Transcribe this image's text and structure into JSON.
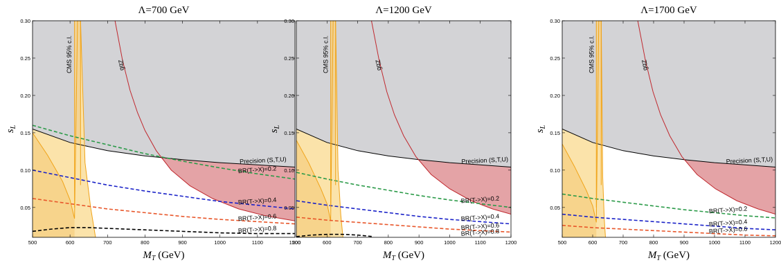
{
  "chart_data": [
    {
      "type": "line",
      "title": "Λ=700 GeV",
      "xlabel": "M_T (GeV)",
      "ylabel": "s_L",
      "xlim": [
        500,
        1200
      ],
      "ylim": [
        0.01,
        0.3
      ],
      "xticks": [
        "500",
        "600",
        "700",
        "800",
        "900",
        "1000",
        "1100",
        "1200"
      ],
      "yticks": [
        "0.05",
        "0.10",
        "0.15",
        "0.20",
        "0.25",
        "0.30"
      ],
      "regions": {
        "precision_excluded_color": "#d3d3d6",
        "zbb_excluded_color": "#e4a3a6",
        "cms_excluded_color": "#f7d48c",
        "cms_inner_color": "#fbe3aa"
      },
      "series": [
        {
          "name": "Precision (S,T,U)",
          "color": "#000000",
          "style": "solid",
          "x": [
            500,
            600,
            700,
            800,
            900,
            1000,
            1100,
            1200
          ],
          "y": [
            0.155,
            0.137,
            0.126,
            0.119,
            0.114,
            0.11,
            0.107,
            0.104
          ]
        },
        {
          "name": "Zbb̄",
          "color": "#c0282e",
          "style": "solid",
          "x": [
            720,
            740,
            760,
            780,
            800,
            830,
            870,
            920,
            980,
            1050,
            1120,
            1200
          ],
          "y": [
            0.3,
            0.247,
            0.207,
            0.177,
            0.153,
            0.126,
            0.1,
            0.079,
            0.062,
            0.048,
            0.039,
            0.032
          ]
        },
        {
          "name": "CMS 95% c.l.",
          "color": "#f0a318",
          "style": "solid",
          "x": [
            500,
            540,
            580,
            600,
            612,
            620,
            628,
            640,
            655,
            668
          ],
          "y": [
            0.15,
            0.12,
            0.085,
            0.06,
            0.035,
            0.3,
            0.3,
            0.11,
            0.05,
            0.01
          ]
        },
        {
          "name": "BR(T->X)=0.2",
          "color": "#2a9a48",
          "style": "dashed",
          "x": [
            500,
            600,
            700,
            800,
            900,
            1000,
            1100,
            1200
          ],
          "y": [
            0.16,
            0.146,
            0.134,
            0.122,
            0.112,
            0.103,
            0.095,
            0.088
          ]
        },
        {
          "name": "BR(T->X)=0.4",
          "color": "#1a22c8",
          "style": "dashed",
          "x": [
            500,
            600,
            700,
            800,
            900,
            1000,
            1100,
            1200
          ],
          "y": [
            0.1,
            0.09,
            0.08,
            0.072,
            0.065,
            0.058,
            0.053,
            0.048
          ]
        },
        {
          "name": "BR(T->X)=0.6",
          "color": "#e8562a",
          "style": "dashed",
          "x": [
            500,
            600,
            700,
            800,
            900,
            1000,
            1100,
            1200
          ],
          "y": [
            0.062,
            0.055,
            0.048,
            0.043,
            0.038,
            0.034,
            0.031,
            0.028
          ]
        },
        {
          "name": "BR(T->X)=0.8",
          "color": "#000000",
          "style": "dashed",
          "x": [
            500,
            550,
            600,
            650,
            700,
            800,
            900,
            1000,
            1100,
            1200
          ],
          "y": [
            0.018,
            0.021,
            0.023,
            0.023,
            0.022,
            0.02,
            0.018,
            0.016,
            0.015,
            0.015
          ]
        }
      ],
      "annotations": {
        "precision": "Precision (S,T,U)",
        "zbb": "Zbb̄",
        "cms": "CMS 95% c.l.",
        "br": [
          "BR(T->X)=0.2",
          "BR(T->X)=0.4",
          "BR(T->X)=0.6",
          "BR(T->X)=0.8"
        ]
      }
    },
    {
      "type": "line",
      "title": "Λ=1200 GeV",
      "xlabel": "M_T (GeV)",
      "ylabel": "s_L",
      "xlim": [
        500,
        1200
      ],
      "ylim": [
        0.01,
        0.3
      ],
      "xticks": [
        "500",
        "600",
        "700",
        "800",
        "900",
        "1000",
        "1100",
        "1200"
      ],
      "yticks": [
        "0.05",
        "0.10",
        "0.15",
        "0.20",
        "0.25",
        "0.30"
      ],
      "regions": {
        "precision_excluded_color": "#d3d3d6",
        "zbb_excluded_color": "#e4a3a6",
        "cms_excluded_color": "#f7d48c",
        "cms_inner_color": "#fbe3aa"
      },
      "series": [
        {
          "name": "Precision (S,T,U)",
          "color": "#000000",
          "style": "solid",
          "x": [
            500,
            600,
            700,
            800,
            900,
            1000,
            1100,
            1200
          ],
          "y": [
            0.155,
            0.137,
            0.126,
            0.119,
            0.114,
            0.11,
            0.107,
            0.104
          ]
        },
        {
          "name": "Zbb̄",
          "color": "#c0282e",
          "style": "solid",
          "x": [
            745,
            770,
            795,
            820,
            850,
            890,
            940,
            1000,
            1070,
            1140,
            1200
          ],
          "y": [
            0.3,
            0.247,
            0.205,
            0.174,
            0.146,
            0.118,
            0.094,
            0.075,
            0.059,
            0.048,
            0.041
          ]
        },
        {
          "name": "CMS 95% c.l.",
          "color": "#f0a318",
          "style": "solid",
          "x": [
            500,
            540,
            580,
            600,
            612,
            620,
            628,
            636,
            645,
            652
          ],
          "y": [
            0.14,
            0.11,
            0.075,
            0.055,
            0.032,
            0.3,
            0.3,
            0.1,
            0.04,
            0.01
          ]
        },
        {
          "name": "BR(T->X)=0.2",
          "color": "#2a9a48",
          "style": "dashed",
          "x": [
            500,
            600,
            700,
            800,
            900,
            1000,
            1100,
            1200
          ],
          "y": [
            0.097,
            0.088,
            0.08,
            0.073,
            0.066,
            0.06,
            0.055,
            0.05
          ]
        },
        {
          "name": "BR(T->X)=0.4",
          "color": "#1a22c8",
          "style": "dashed",
          "x": [
            500,
            600,
            700,
            800,
            900,
            1000,
            1100,
            1200
          ],
          "y": [
            0.059,
            0.053,
            0.048,
            0.043,
            0.038,
            0.034,
            0.031,
            0.028
          ]
        },
        {
          "name": "BR(T->X)=0.6",
          "color": "#e8562a",
          "style": "dashed",
          "x": [
            500,
            600,
            700,
            800,
            900,
            1000,
            1100,
            1200
          ],
          "y": [
            0.037,
            0.033,
            0.03,
            0.027,
            0.024,
            0.021,
            0.019,
            0.017
          ]
        },
        {
          "name": "BR(T->X)=0.8",
          "color": "#000000",
          "style": "dashed",
          "x": [
            500,
            550,
            600,
            650,
            700,
            750
          ],
          "y": [
            0.011,
            0.013,
            0.014,
            0.014,
            0.013,
            0.011
          ]
        }
      ],
      "annotations": {
        "precision": "Precision (S,T,U)",
        "zbb": "Zbb̄",
        "cms": "CMS 95% c.l.",
        "br": [
          "BR(T->X)=0.2",
          "BR(T->X)=0.4",
          "BR(T->X)=0.6",
          "BR(T->X)=0.8"
        ]
      }
    },
    {
      "type": "line",
      "title": "Λ=1700 GeV",
      "xlabel": "M_T (GeV)",
      "ylabel": "s_L",
      "xlim": [
        500,
        1200
      ],
      "ylim": [
        0.01,
        0.3
      ],
      "xticks": [
        "500",
        "600",
        "700",
        "800",
        "900",
        "1000",
        "1100",
        "1200"
      ],
      "yticks": [
        "0.05",
        "0.10",
        "0.15",
        "0.20",
        "0.25",
        "0.30"
      ],
      "regions": {
        "precision_excluded_color": "#d3d3d6",
        "zbb_excluded_color": "#e4a3a6",
        "cms_excluded_color": "#f7d48c",
        "cms_inner_color": "#fbe3aa"
      },
      "series": [
        {
          "name": "Precision (S,T,U)",
          "color": "#000000",
          "style": "solid",
          "x": [
            500,
            600,
            700,
            800,
            900,
            1000,
            1100,
            1200
          ],
          "y": [
            0.155,
            0.137,
            0.126,
            0.119,
            0.114,
            0.11,
            0.107,
            0.104
          ]
        },
        {
          "name": "Zbb̄",
          "color": "#c0282e",
          "style": "solid",
          "x": [
            748,
            773,
            798,
            823,
            853,
            893,
            943,
            1003,
            1073,
            1143,
            1200
          ],
          "y": [
            0.3,
            0.247,
            0.205,
            0.174,
            0.146,
            0.118,
            0.094,
            0.075,
            0.059,
            0.048,
            0.041
          ]
        },
        {
          "name": "CMS 95% c.l.",
          "color": "#f0a318",
          "style": "solid",
          "x": [
            500,
            540,
            580,
            600,
            612,
            620,
            628,
            633,
            638,
            642
          ],
          "y": [
            0.135,
            0.105,
            0.072,
            0.052,
            0.03,
            0.3,
            0.3,
            0.09,
            0.035,
            0.01
          ]
        },
        {
          "name": "BR(T->X)=0.2",
          "color": "#2a9a48",
          "style": "dashed",
          "x": [
            500,
            600,
            700,
            800,
            900,
            1000,
            1100,
            1200
          ],
          "y": [
            0.068,
            0.062,
            0.057,
            0.052,
            0.047,
            0.043,
            0.039,
            0.036
          ]
        },
        {
          "name": "BR(T->X)=0.4",
          "color": "#1a22c8",
          "style": "dashed",
          "x": [
            500,
            600,
            700,
            800,
            900,
            1000,
            1100,
            1200
          ],
          "y": [
            0.041,
            0.037,
            0.034,
            0.031,
            0.028,
            0.025,
            0.022,
            0.02
          ]
        },
        {
          "name": "BR(T->X)=0.6",
          "color": "#e8562a",
          "style": "dashed",
          "x": [
            500,
            600,
            700,
            800,
            900,
            1000,
            1100,
            1200
          ],
          "y": [
            0.026,
            0.023,
            0.021,
            0.019,
            0.017,
            0.015,
            0.013,
            0.012
          ]
        }
      ],
      "annotations": {
        "precision": "Precision (S,T,U)",
        "zbb": "Zbb̄",
        "cms": "CMS 95% c.l.",
        "br": [
          "BR(T->X)=0.2",
          "BR(T->X)=0.4",
          "BR(T->X)=0.6"
        ]
      }
    }
  ]
}
